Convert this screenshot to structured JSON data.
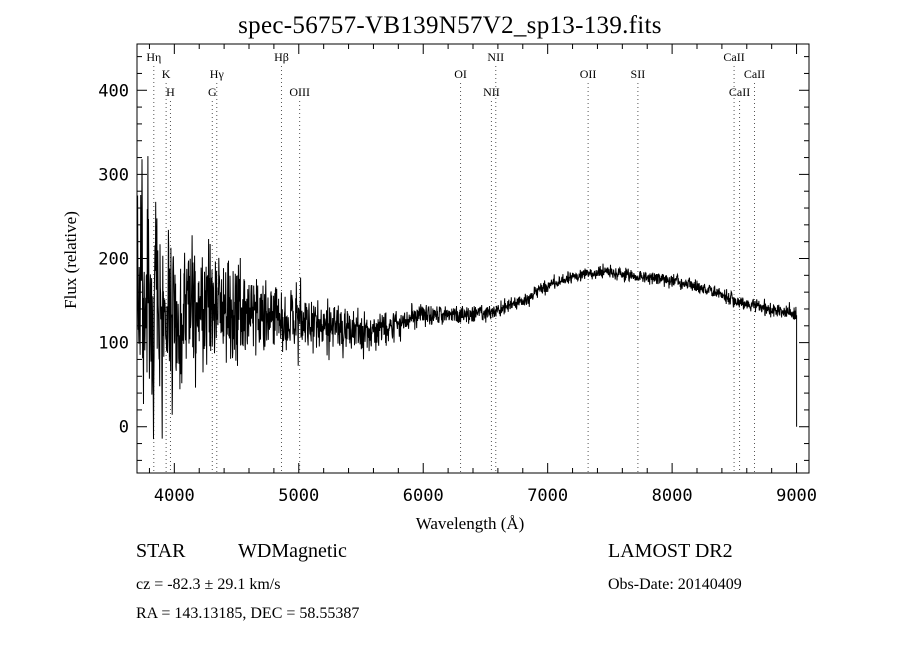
{
  "header": {
    "title": "spec-56757-VB139N57V2_sp13-139.fits"
  },
  "info": {
    "class": "STAR",
    "subclass": "WDMagnetic",
    "survey": "LAMOST DR2",
    "cz": "cz = -82.3 ± 29.1 km/s",
    "obs_date": "Obs-Date: 20140409",
    "radec": "RA = 143.13185, DEC =  58.55387"
  },
  "chart_data": {
    "type": "line",
    "title": "spec-56757-VB139N57V2_sp13-139.fits",
    "xlabel": "Wavelength (Å)",
    "ylabel": "Flux (relative)",
    "xlim": [
      3700,
      9100
    ],
    "ylim": [
      -55,
      455
    ],
    "x_ticks": [
      4000,
      5000,
      6000,
      7000,
      8000,
      9000
    ],
    "x_minor_step": 200,
    "y_ticks": [
      0,
      100,
      200,
      300,
      400
    ],
    "y_minor_step": 20,
    "grid": false,
    "colors": {
      "line": "#000000",
      "axes": "#000000",
      "background": "#ffffff"
    },
    "lines": [
      {
        "label": "Hη",
        "wavelength": 3835,
        "row": 0
      },
      {
        "label": "K",
        "wavelength": 3934,
        "row": 1
      },
      {
        "label": "H",
        "wavelength": 3969,
        "row": 2
      },
      {
        "label": "Hγ",
        "wavelength": 4341,
        "row": 1
      },
      {
        "label": "G",
        "wavelength": 4305,
        "row": 2
      },
      {
        "label": "Hβ",
        "wavelength": 4861,
        "row": 0
      },
      {
        "label": "OIII",
        "wavelength": 5007,
        "row": 2
      },
      {
        "label": "OI",
        "wavelength": 6300,
        "row": 1
      },
      {
        "label": "NII",
        "wavelength": 6583,
        "row": 0
      },
      {
        "label": "NII",
        "wavelength": 6548,
        "row": 2
      },
      {
        "label": "OII",
        "wavelength": 7325,
        "row": 1
      },
      {
        "label": "SII",
        "wavelength": 7725,
        "row": 1
      },
      {
        "label": "CaII",
        "wavelength": 8498,
        "row": 0
      },
      {
        "label": "CaII",
        "wavelength": 8662,
        "row": 1
      },
      {
        "label": "CaII",
        "wavelength": 8542,
        "row": 2
      }
    ],
    "spectrum": {
      "x_start": 3700,
      "x_end": 9000,
      "end_drop_to": 0,
      "continuum": [
        [
          3700,
          150
        ],
        [
          3850,
          150
        ],
        [
          4000,
          145
        ],
        [
          4200,
          140
        ],
        [
          4500,
          140
        ],
        [
          4800,
          135
        ],
        [
          5000,
          125
        ],
        [
          5300,
          115
        ],
        [
          5600,
          110
        ],
        [
          5800,
          122
        ],
        [
          6000,
          135
        ],
        [
          6300,
          133
        ],
        [
          6600,
          138
        ],
        [
          6800,
          150
        ],
        [
          7000,
          168
        ],
        [
          7200,
          178
        ],
        [
          7450,
          185
        ],
        [
          7700,
          178
        ],
        [
          7900,
          177
        ],
        [
          8200,
          168
        ],
        [
          8500,
          150
        ],
        [
          8700,
          142
        ],
        [
          9000,
          134
        ]
      ],
      "noise": [
        [
          3700,
          110
        ],
        [
          3900,
          90
        ],
        [
          4100,
          62
        ],
        [
          4400,
          48
        ],
        [
          4800,
          30
        ],
        [
          5200,
          22
        ],
        [
          5600,
          16
        ],
        [
          5900,
          10
        ],
        [
          6300,
          7
        ],
        [
          6700,
          6
        ],
        [
          7500,
          5
        ],
        [
          8500,
          6
        ],
        [
          9000,
          7
        ]
      ]
    }
  }
}
